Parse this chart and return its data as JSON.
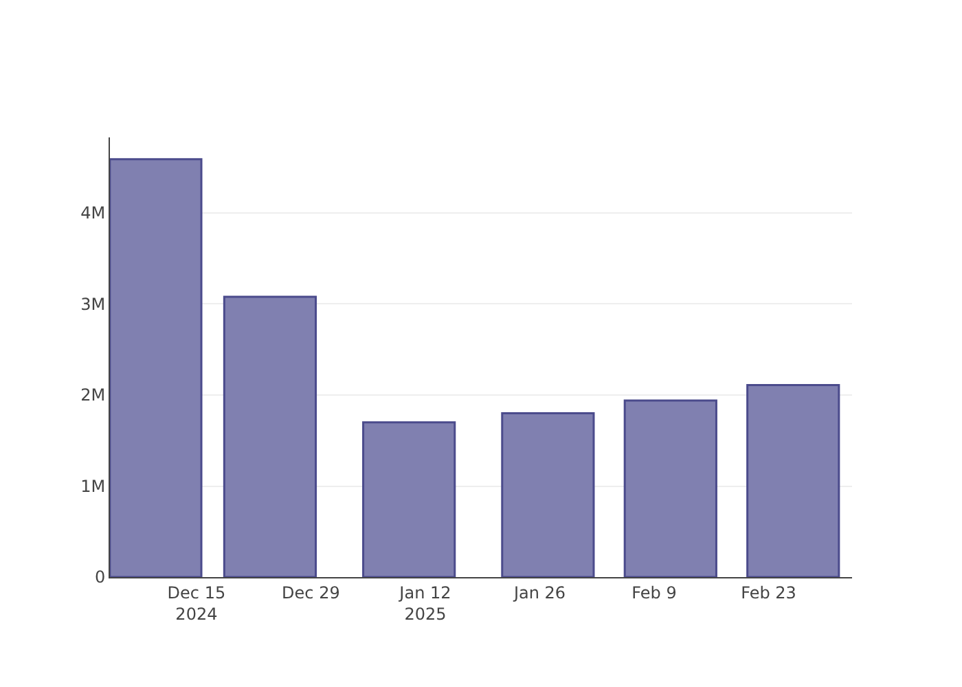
{
  "chart_data": {
    "type": "bar",
    "x": [
      "2024-12-10",
      "2024-12-24",
      "2025-01-10",
      "2025-01-27",
      "2025-02-11",
      "2025-02-26"
    ],
    "series": [
      {
        "color": "#8080b0",
        "values": [
          4590000,
          3080000,
          1700000,
          1800000,
          1940000,
          2110000
        ]
      }
    ],
    "xlim": [
      "2024-12-04T10:00",
      "2025-03-05T05:00"
    ],
    "xticks": [
      {
        "value": "2024-12-15",
        "label": "Dec 15\n2024"
      },
      {
        "value": "2024-12-29",
        "label": "Dec 29"
      },
      {
        "value": "2025-01-12",
        "label": "Jan 12\n2025"
      },
      {
        "value": "2025-01-26",
        "label": "Jan 26"
      },
      {
        "value": "2025-02-09",
        "label": "Feb 9"
      },
      {
        "value": "2025-02-23",
        "label": "Feb 23"
      }
    ],
    "ylim": [
      0,
      4830000
    ],
    "yticks": [
      {
        "value": 0,
        "label": "0"
      },
      {
        "value": 1000000,
        "label": "1M"
      },
      {
        "value": 2000000,
        "label": "2M"
      },
      {
        "value": 3000000,
        "label": "3M"
      },
      {
        "value": 4000000,
        "label": "4M"
      }
    ],
    "grid": "y"
  }
}
